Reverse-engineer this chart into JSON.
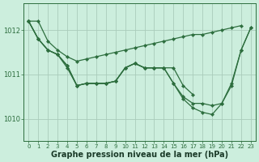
{
  "background_color": "#cceedd",
  "grid_color": "#aaccbb",
  "line_color": "#2d6e3e",
  "marker_color": "#2d6e3e",
  "xlabel": "Graphe pression niveau de la mer (hPa)",
  "xlabel_fontsize": 7,
  "ylim": [
    1009.5,
    1012.6
  ],
  "xlim": [
    -0.5,
    23.5
  ],
  "yticks": [
    1010,
    1011,
    1012
  ],
  "xticks": [
    0,
    1,
    2,
    3,
    4,
    5,
    6,
    7,
    8,
    9,
    10,
    11,
    12,
    13,
    14,
    15,
    16,
    17,
    18,
    19,
    20,
    21,
    22,
    23
  ],
  "series": [
    {
      "x": [
        0,
        1,
        2,
        3,
        4,
        5,
        6,
        7,
        8,
        9,
        10,
        11,
        12,
        13,
        14,
        15,
        16,
        17,
        18,
        19,
        20,
        21,
        22
      ],
      "y": [
        1012.2,
        1012.2,
        1011.75,
        1011.55,
        1011.4,
        1011.3,
        1011.35,
        1011.4,
        1011.45,
        1011.5,
        1011.55,
        1011.6,
        1011.65,
        1011.7,
        1011.75,
        1011.8,
        1011.85,
        1011.9,
        1011.9,
        1011.95,
        1012.0,
        1012.05,
        1012.1
      ]
    },
    {
      "x": [
        0,
        1,
        2,
        3,
        4,
        5,
        6,
        7,
        8,
        9,
        10,
        11,
        12,
        13,
        14,
        15,
        16,
        17,
        18,
        19,
        20,
        21,
        22,
        23
      ],
      "y": [
        1012.2,
        1011.8,
        1011.55,
        1011.45,
        1011.15,
        1010.75,
        1010.8,
        1010.8,
        1010.8,
        1010.85,
        1011.15,
        1011.25,
        1011.15,
        1011.15,
        1011.15,
        1011.15,
        1010.75,
        1010.55,
        null,
        null,
        null,
        null,
        null,
        null
      ]
    },
    {
      "x": [
        0,
        1,
        2,
        3,
        4,
        5,
        6,
        7,
        8,
        9,
        10,
        11,
        12,
        13,
        14,
        15,
        16,
        17,
        18,
        19,
        20,
        21,
        22,
        23
      ],
      "y": [
        1012.2,
        1011.8,
        1011.55,
        1011.45,
        1011.2,
        1010.75,
        1010.8,
        1010.8,
        1010.8,
        1010.85,
        1011.15,
        1011.25,
        1011.15,
        1011.15,
        1011.15,
        1010.8,
        1010.5,
        1010.35,
        1010.35,
        1010.3,
        1010.35,
        1010.8,
        1011.55,
        1012.05
      ]
    },
    {
      "x": [
        0,
        1,
        2,
        3,
        4,
        5,
        6,
        7,
        8,
        9,
        10,
        11,
        12,
        13,
        14,
        15,
        16,
        17,
        18,
        19,
        20,
        21,
        22,
        23
      ],
      "y": [
        1012.2,
        1011.8,
        1011.55,
        1011.45,
        1011.2,
        1010.75,
        1010.8,
        1010.8,
        1010.8,
        1010.85,
        1011.15,
        1011.25,
        1011.15,
        1011.15,
        1011.15,
        1010.8,
        1010.45,
        1010.25,
        1010.15,
        1010.1,
        1010.35,
        1010.75,
        1011.55,
        1012.05
      ]
    }
  ]
}
